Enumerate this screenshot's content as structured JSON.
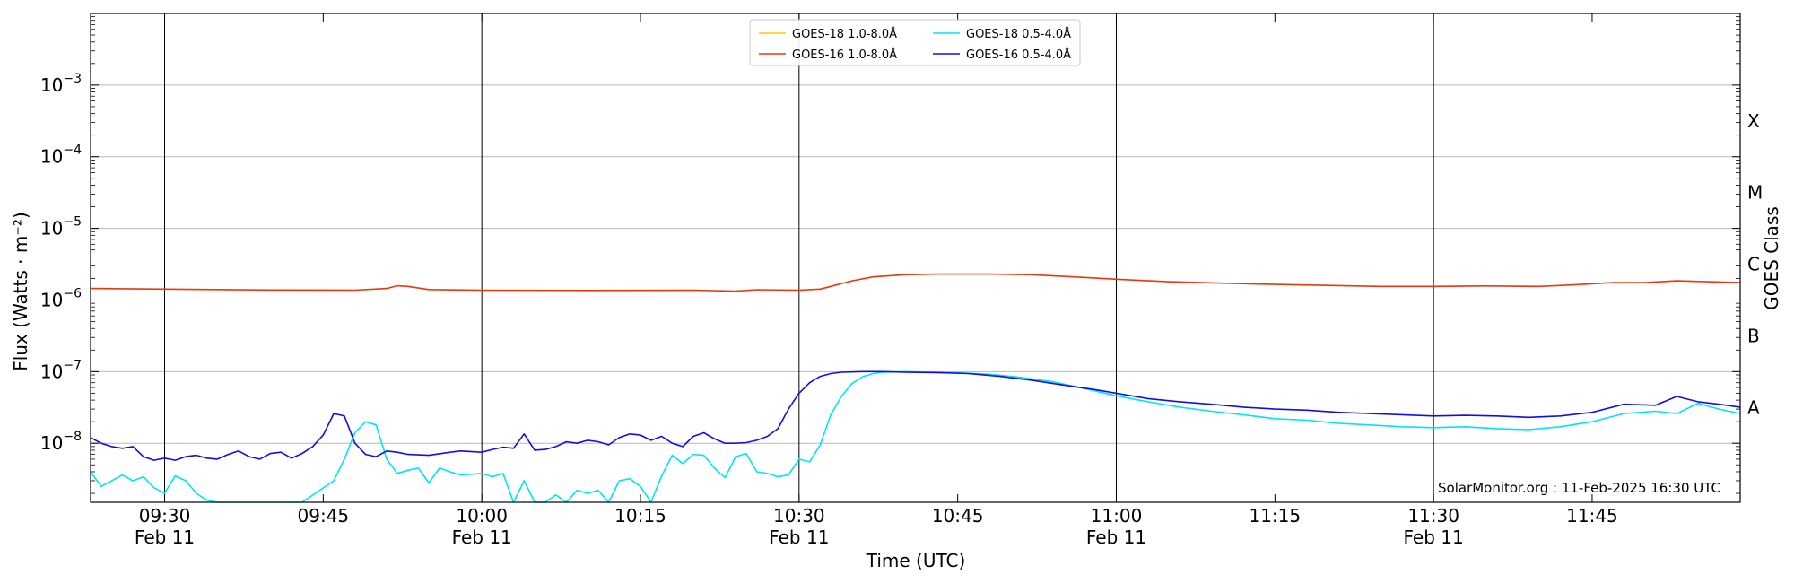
{
  "chart_data": {
    "type": "line",
    "xlabel": "Time (UTC)",
    "ylabel": "Flux (Watts · m⁻²)",
    "y2label": "GOES Class",
    "yscale": "log",
    "ylim": [
      1.5e-09,
      0.01
    ],
    "xlim": [
      "09:23",
      "11:59"
    ],
    "grid": "horizontal at decades; vertical at half-hour ticks",
    "legend_position": "top-center",
    "x_ticks": [
      {
        "time": "09:30",
        "label": "09:30",
        "sublabel": "Feb 11"
      },
      {
        "time": "09:45",
        "label": "09:45",
        "sublabel": ""
      },
      {
        "time": "10:00",
        "label": "10:00",
        "sublabel": "Feb 11"
      },
      {
        "time": "10:15",
        "label": "10:15",
        "sublabel": ""
      },
      {
        "time": "10:30",
        "label": "10:30",
        "sublabel": "Feb 11"
      },
      {
        "time": "10:45",
        "label": "10:45",
        "sublabel": ""
      },
      {
        "time": "11:00",
        "label": "11:00",
        "sublabel": "Feb 11"
      },
      {
        "time": "11:15",
        "label": "11:15",
        "sublabel": ""
      },
      {
        "time": "11:30",
        "label": "11:30",
        "sublabel": "Feb 11"
      },
      {
        "time": "11:45",
        "label": "11:45",
        "sublabel": ""
      }
    ],
    "y_ticks": [
      {
        "value": 1e-08,
        "label": "10",
        "exp": "−8"
      },
      {
        "value": 1e-07,
        "label": "10",
        "exp": "−7"
      },
      {
        "value": 1e-06,
        "label": "10",
        "exp": "−6"
      },
      {
        "value": 1e-05,
        "label": "10",
        "exp": "−5"
      },
      {
        "value": 0.0001,
        "label": "10",
        "exp": "−4"
      },
      {
        "value": 0.001,
        "label": "10",
        "exp": "−3"
      }
    ],
    "classes": [
      {
        "label": "A",
        "value": 3.162e-08
      },
      {
        "label": "B",
        "value": 3.162e-07
      },
      {
        "label": "C",
        "value": 3.162e-06
      },
      {
        "label": "M",
        "value": 3.162e-05
      },
      {
        "label": "X",
        "value": 0.0003162
      }
    ],
    "annotation": "SolarMonitor.org : 11-Feb-2025 16:30 UTC",
    "series": [
      {
        "name": "GOES-18 1.0-8.0Å",
        "color": "#ffcc00",
        "points": []
      },
      {
        "name": "GOES-16 1.0-8.0Å",
        "color": "#e8380d",
        "points": [
          [
            "09:23",
            1.45e-06
          ],
          [
            "09:30",
            1.42e-06
          ],
          [
            "09:40",
            1.38e-06
          ],
          [
            "09:48",
            1.37e-06
          ],
          [
            "09:51",
            1.45e-06
          ],
          [
            "09:52",
            1.58e-06
          ],
          [
            "09:53",
            1.55e-06
          ],
          [
            "09:55",
            1.4e-06
          ],
          [
            "10:00",
            1.37e-06
          ],
          [
            "10:10",
            1.36e-06
          ],
          [
            "10:20",
            1.37e-06
          ],
          [
            "10:24",
            1.33e-06
          ],
          [
            "10:26",
            1.39e-06
          ],
          [
            "10:30",
            1.37e-06
          ],
          [
            "10:32",
            1.42e-06
          ],
          [
            "10:33",
            1.55e-06
          ],
          [
            "10:35",
            1.85e-06
          ],
          [
            "10:37",
            2.1e-06
          ],
          [
            "10:40",
            2.25e-06
          ],
          [
            "10:43",
            2.3e-06
          ],
          [
            "10:48",
            2.3e-06
          ],
          [
            "10:52",
            2.25e-06
          ],
          [
            "10:56",
            2.1e-06
          ],
          [
            "11:00",
            1.95e-06
          ],
          [
            "11:05",
            1.8e-06
          ],
          [
            "11:10",
            1.72e-06
          ],
          [
            "11:15",
            1.65e-06
          ],
          [
            "11:20",
            1.6e-06
          ],
          [
            "11:25",
            1.55e-06
          ],
          [
            "11:30",
            1.55e-06
          ],
          [
            "11:35",
            1.57e-06
          ],
          [
            "11:40",
            1.55e-06
          ],
          [
            "11:43",
            1.62e-06
          ],
          [
            "11:47",
            1.75e-06
          ],
          [
            "11:50",
            1.75e-06
          ],
          [
            "11:53",
            1.85e-06
          ],
          [
            "11:56",
            1.8e-06
          ],
          [
            "11:59",
            1.75e-06
          ]
        ]
      },
      {
        "name": "GOES-18 0.5-4.0Å",
        "color": "#00e5ee",
        "points": [
          [
            "09:23",
            4e-09
          ],
          [
            "09:24",
            2.5e-09
          ],
          [
            "09:25",
            3e-09
          ],
          [
            "09:26",
            3.6e-09
          ],
          [
            "09:27",
            3e-09
          ],
          [
            "09:28",
            3.4e-09
          ],
          [
            "09:29",
            2.4e-09
          ],
          [
            "09:30",
            2e-09
          ],
          [
            "09:31",
            3.5e-09
          ],
          [
            "09:32",
            3e-09
          ],
          [
            "09:33",
            2e-09
          ],
          [
            "09:34",
            1.6e-09
          ],
          [
            "09:35",
            1.3e-09
          ],
          [
            "09:36",
            1.3e-09
          ],
          [
            "09:37",
            1.5e-09
          ],
          [
            "09:38",
            1.4e-09
          ],
          [
            "09:39",
            1.3e-09
          ],
          [
            "09:40",
            1.25e-09
          ],
          [
            "09:42",
            1.3e-09
          ],
          [
            "09:43",
            1.5e-09
          ],
          [
            "09:46",
            3e-09
          ],
          [
            "09:47",
            6e-09
          ],
          [
            "09:48",
            1.4e-08
          ],
          [
            "09:49",
            2e-08
          ],
          [
            "09:50",
            1.8e-08
          ],
          [
            "09:51",
            6e-09
          ],
          [
            "09:52",
            3.8e-09
          ],
          [
            "09:53",
            4.2e-09
          ],
          [
            "09:54",
            4.5e-09
          ],
          [
            "09:55",
            2.8e-09
          ],
          [
            "09:56",
            4.5e-09
          ],
          [
            "09:57",
            4e-09
          ],
          [
            "09:58",
            3.6e-09
          ],
          [
            "10:00",
            3.8e-09
          ],
          [
            "10:01",
            3.4e-09
          ],
          [
            "10:02",
            3.8e-09
          ],
          [
            "10:03",
            1.3e-09
          ],
          [
            "10:04",
            3e-09
          ],
          [
            "10:05",
            1.3e-09
          ],
          [
            "10:06",
            1.45e-09
          ],
          [
            "10:07",
            1.9e-09
          ],
          [
            "10:08",
            1.3e-09
          ],
          [
            "10:09",
            2.2e-09
          ],
          [
            "10:10",
            2e-09
          ],
          [
            "10:11",
            2.2e-09
          ],
          [
            "10:12",
            1.3e-09
          ],
          [
            "10:13",
            3e-09
          ],
          [
            "10:14",
            3.2e-09
          ],
          [
            "10:15",
            2.5e-09
          ],
          [
            "10:16",
            1.35e-09
          ],
          [
            "10:17",
            3.5e-09
          ],
          [
            "10:18",
            6.8e-09
          ],
          [
            "10:19",
            5.2e-09
          ],
          [
            "10:20",
            7e-09
          ],
          [
            "10:21",
            6.8e-09
          ],
          [
            "10:22",
            4.5e-09
          ],
          [
            "10:23",
            3.3e-09
          ],
          [
            "10:24",
            6.5e-09
          ],
          [
            "10:25",
            7.2e-09
          ],
          [
            "10:26",
            4e-09
          ],
          [
            "10:27",
            3.8e-09
          ],
          [
            "10:28",
            3.4e-09
          ],
          [
            "10:29",
            3.6e-09
          ],
          [
            "10:30",
            6e-09
          ],
          [
            "10:31",
            5.5e-09
          ],
          [
            "10:32",
            9.5e-09
          ],
          [
            "10:33",
            2.5e-08
          ],
          [
            "10:34",
            4.5e-08
          ],
          [
            "10:35",
            6.8e-08
          ],
          [
            "10:36",
            8.5e-08
          ],
          [
            "10:37",
            9.4e-08
          ],
          [
            "10:38",
            9.8e-08
          ],
          [
            "10:40",
            1e-07
          ],
          [
            "10:42",
            9.8e-08
          ],
          [
            "10:45",
            9.6e-08
          ],
          [
            "10:48",
            9.2e-08
          ],
          [
            "10:51",
            8.3e-08
          ],
          [
            "10:54",
            7.2e-08
          ],
          [
            "10:57",
            5.8e-08
          ],
          [
            "11:00",
            4.6e-08
          ],
          [
            "11:03",
            3.8e-08
          ],
          [
            "11:06",
            3.2e-08
          ],
          [
            "11:09",
            2.8e-08
          ],
          [
            "11:12",
            2.5e-08
          ],
          [
            "11:15",
            2.2e-08
          ],
          [
            "11:18",
            2.1e-08
          ],
          [
            "11:21",
            1.9e-08
          ],
          [
            "11:24",
            1.8e-08
          ],
          [
            "11:27",
            1.7e-08
          ],
          [
            "11:30",
            1.65e-08
          ],
          [
            "11:33",
            1.7e-08
          ],
          [
            "11:36",
            1.6e-08
          ],
          [
            "11:39",
            1.55e-08
          ],
          [
            "11:42",
            1.7e-08
          ],
          [
            "11:45",
            2e-08
          ],
          [
            "11:48",
            2.6e-08
          ],
          [
            "11:51",
            2.8e-08
          ],
          [
            "11:53",
            2.6e-08
          ],
          [
            "11:55",
            3.6e-08
          ],
          [
            "11:57",
            3e-08
          ],
          [
            "11:59",
            2.6e-08
          ]
        ]
      },
      {
        "name": "GOES-16 0.5-4.0Å",
        "color": "#1010e0",
        "points": [
          [
            "09:23",
            1.2e-08
          ],
          [
            "09:24",
            1e-08
          ],
          [
            "09:25",
            9e-09
          ],
          [
            "09:26",
            8.5e-09
          ],
          [
            "09:27",
            9e-09
          ],
          [
            "09:28",
            6.5e-09
          ],
          [
            "09:29",
            5.8e-09
          ],
          [
            "09:30",
            6.2e-09
          ],
          [
            "09:31",
            5.8e-09
          ],
          [
            "09:32",
            6.5e-09
          ],
          [
            "09:33",
            6.8e-09
          ],
          [
            "09:34",
            6.2e-09
          ],
          [
            "09:35",
            6e-09
          ],
          [
            "09:36",
            7e-09
          ],
          [
            "09:37",
            7.8e-09
          ],
          [
            "09:38",
            6.5e-09
          ],
          [
            "09:39",
            6e-09
          ],
          [
            "09:40",
            7.2e-09
          ],
          [
            "09:41",
            7.5e-09
          ],
          [
            "09:42",
            6.2e-09
          ],
          [
            "09:43",
            7.2e-09
          ],
          [
            "09:44",
            9e-09
          ],
          [
            "09:45",
            1.3e-08
          ],
          [
            "09:46",
            2.6e-08
          ],
          [
            "09:47",
            2.4e-08
          ],
          [
            "09:48",
            1e-08
          ],
          [
            "09:49",
            7e-09
          ],
          [
            "09:50",
            6.5e-09
          ],
          [
            "09:51",
            7.8e-09
          ],
          [
            "09:52",
            7.5e-09
          ],
          [
            "09:53",
            7e-09
          ],
          [
            "09:55",
            6.8e-09
          ],
          [
            "09:57",
            7.5e-09
          ],
          [
            "09:58",
            7.8e-09
          ],
          [
            "10:00",
            7.5e-09
          ],
          [
            "10:01",
            8.2e-09
          ],
          [
            "10:02",
            8.8e-09
          ],
          [
            "10:03",
            8.5e-09
          ],
          [
            "10:04",
            1.35e-08
          ],
          [
            "10:05",
            8e-09
          ],
          [
            "10:06",
            8.2e-09
          ],
          [
            "10:07",
            9e-09
          ],
          [
            "10:08",
            1.05e-08
          ],
          [
            "10:09",
            1e-08
          ],
          [
            "10:10",
            1.1e-08
          ],
          [
            "10:11",
            1.05e-08
          ],
          [
            "10:12",
            9.5e-09
          ],
          [
            "10:13",
            1.2e-08
          ],
          [
            "10:14",
            1.35e-08
          ],
          [
            "10:15",
            1.3e-08
          ],
          [
            "10:16",
            1.1e-08
          ],
          [
            "10:17",
            1.25e-08
          ],
          [
            "10:18",
            1e-08
          ],
          [
            "10:19",
            9e-09
          ],
          [
            "10:20",
            1.25e-08
          ],
          [
            "10:21",
            1.4e-08
          ],
          [
            "10:22",
            1.15e-08
          ],
          [
            "10:23",
            1e-08
          ],
          [
            "10:24",
            1e-08
          ],
          [
            "10:25",
            1.02e-08
          ],
          [
            "10:26",
            1.1e-08
          ],
          [
            "10:27",
            1.25e-08
          ],
          [
            "10:28",
            1.6e-08
          ],
          [
            "10:29",
            3e-08
          ],
          [
            "10:30",
            5e-08
          ],
          [
            "10:31",
            7e-08
          ],
          [
            "10:32",
            8.6e-08
          ],
          [
            "10:33",
            9.4e-08
          ],
          [
            "10:34",
            9.8e-08
          ],
          [
            "10:36",
            1e-07
          ],
          [
            "10:38",
            1e-07
          ],
          [
            "10:40",
            9.8e-08
          ],
          [
            "10:43",
            9.7e-08
          ],
          [
            "10:46",
            9.4e-08
          ],
          [
            "10:49",
            8.6e-08
          ],
          [
            "10:52",
            7.6e-08
          ],
          [
            "10:55",
            6.5e-08
          ],
          [
            "10:58",
            5.6e-08
          ],
          [
            "11:00",
            5e-08
          ],
          [
            "11:03",
            4.2e-08
          ],
          [
            "11:06",
            3.8e-08
          ],
          [
            "11:09",
            3.5e-08
          ],
          [
            "11:12",
            3.2e-08
          ],
          [
            "11:15",
            3e-08
          ],
          [
            "11:18",
            2.9e-08
          ],
          [
            "11:21",
            2.7e-08
          ],
          [
            "11:24",
            2.6e-08
          ],
          [
            "11:27",
            2.5e-08
          ],
          [
            "11:30",
            2.4e-08
          ],
          [
            "11:33",
            2.45e-08
          ],
          [
            "11:36",
            2.4e-08
          ],
          [
            "11:39",
            2.3e-08
          ],
          [
            "11:42",
            2.4e-08
          ],
          [
            "11:45",
            2.7e-08
          ],
          [
            "11:48",
            3.5e-08
          ],
          [
            "11:51",
            3.4e-08
          ],
          [
            "11:53",
            4.5e-08
          ],
          [
            "11:55",
            3.8e-08
          ],
          [
            "11:57",
            3.5e-08
          ],
          [
            "11:59",
            3.2e-08
          ]
        ]
      }
    ]
  }
}
